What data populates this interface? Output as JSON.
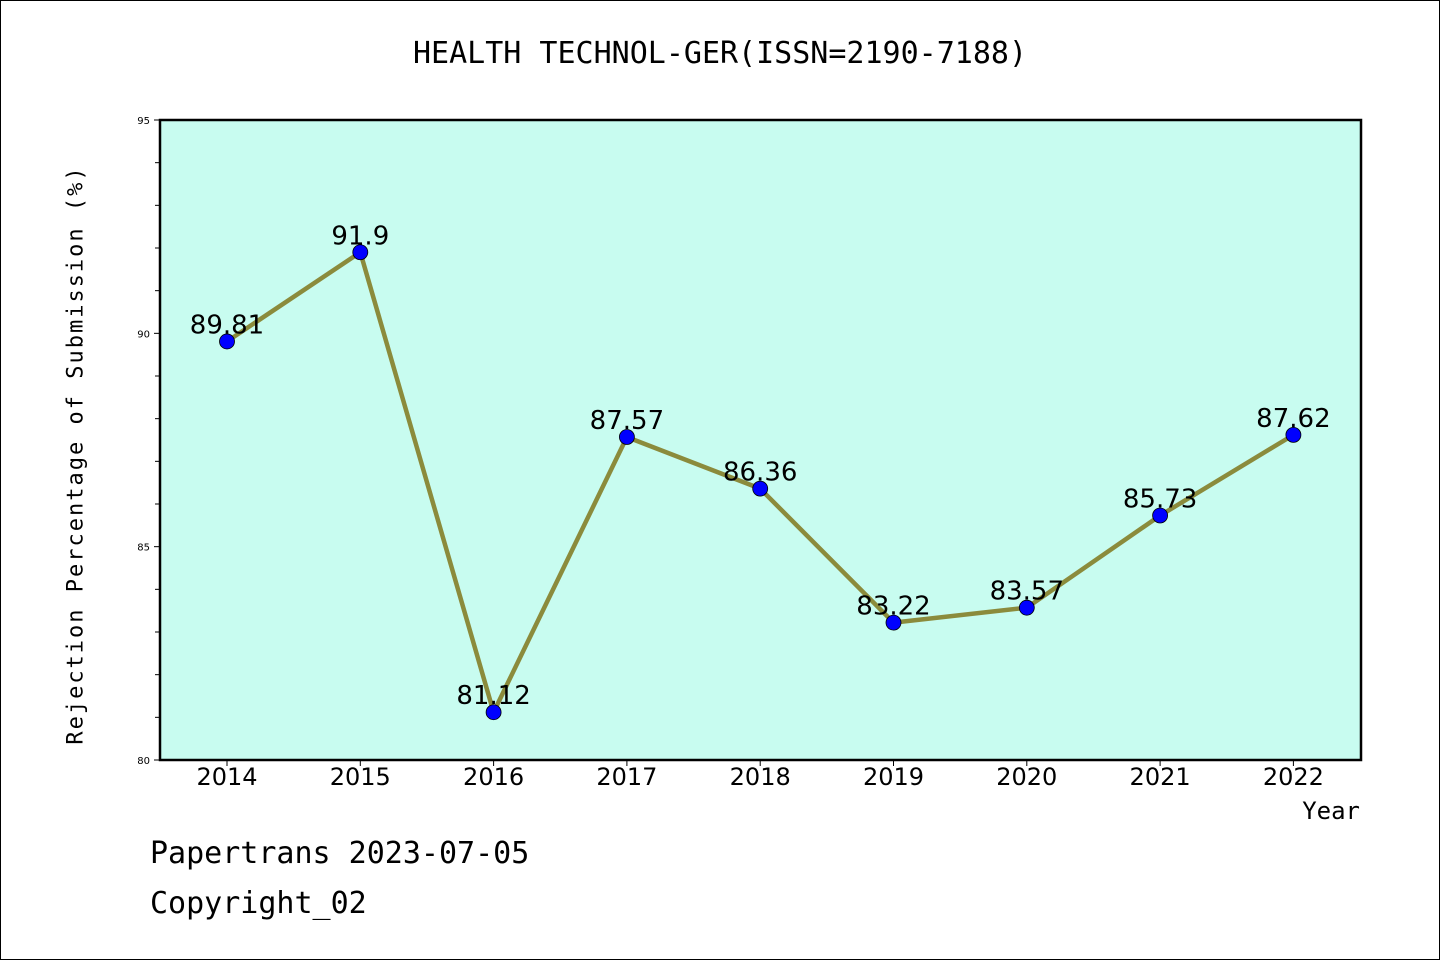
{
  "chart_data": {
    "type": "line",
    "title": "HEALTH TECHNOL-GER(ISSN=2190-7188)",
    "xlabel": "Year",
    "ylabel": "Rejection Percentage of Submission (%)",
    "categories": [
      "2014",
      "2015",
      "2016",
      "2017",
      "2018",
      "2019",
      "2020",
      "2021",
      "2022"
    ],
    "series": [
      {
        "values": [
          89.81,
          91.9,
          81.12,
          87.57,
          86.36,
          83.22,
          83.57,
          85.73,
          87.62
        ],
        "labels": [
          "89.81",
          "91.9",
          "81.12",
          "87.57",
          "86.36",
          "83.22",
          "83.57",
          "85.73",
          "87.62"
        ]
      }
    ],
    "ylim": [
      80,
      95
    ],
    "yticks": [
      "80",
      "85",
      "90",
      "95"
    ],
    "grid": false,
    "colors": {
      "plot_background": "#c8fcf0",
      "line": "#8b8b3c",
      "marker": "#0000ff"
    }
  },
  "footer": {
    "line1": "Papertrans 2023-07-05",
    "line2": "Copyright_02"
  }
}
